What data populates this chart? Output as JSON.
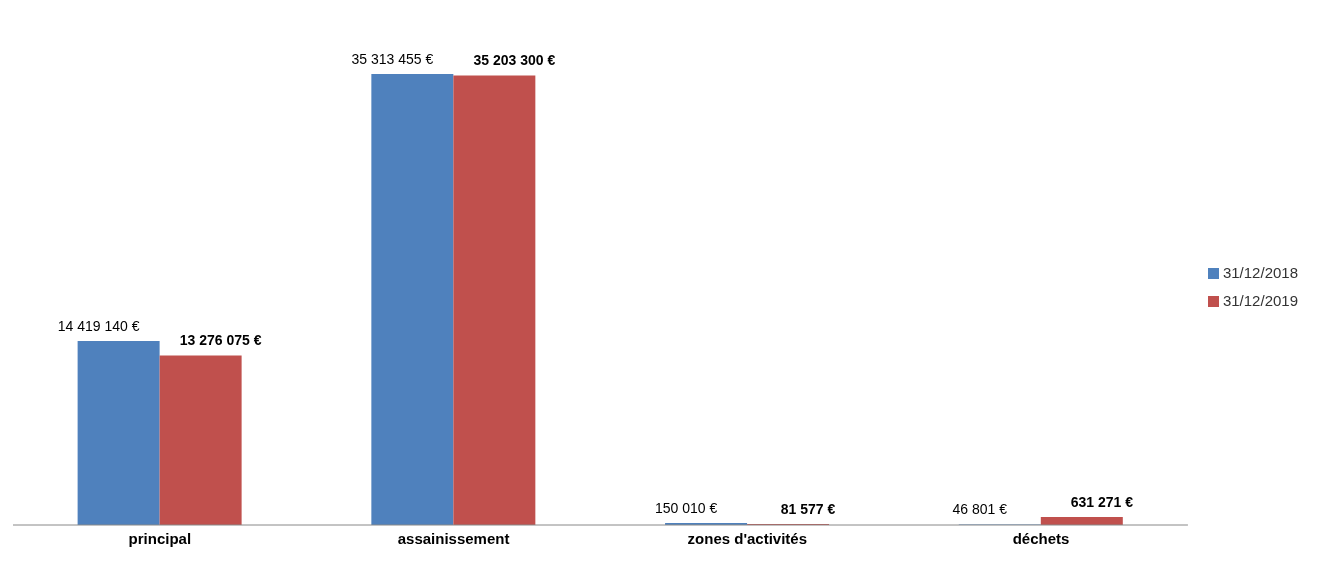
{
  "chart_data": {
    "type": "bar",
    "categories": [
      "principal",
      "assainissement",
      "zones d'activités",
      "déchets"
    ],
    "series": [
      {
        "name": "31/12/2018",
        "color": "#4f81bd",
        "values": [
          14419140,
          35313455,
          150010,
          46801
        ],
        "value_labels": [
          "14 419 140 €",
          "35 313 455 €",
          "150 010 €",
          "46 801 €"
        ]
      },
      {
        "name": "31/12/2019",
        "color": "#c0504d",
        "values": [
          13276075,
          35203300,
          81577,
          631271
        ],
        "value_labels": [
          "13 276 075 €",
          "35 203 300 €",
          "81 577 €",
          "631 271 €"
        ]
      }
    ],
    "legend": "right",
    "grid": false
  }
}
